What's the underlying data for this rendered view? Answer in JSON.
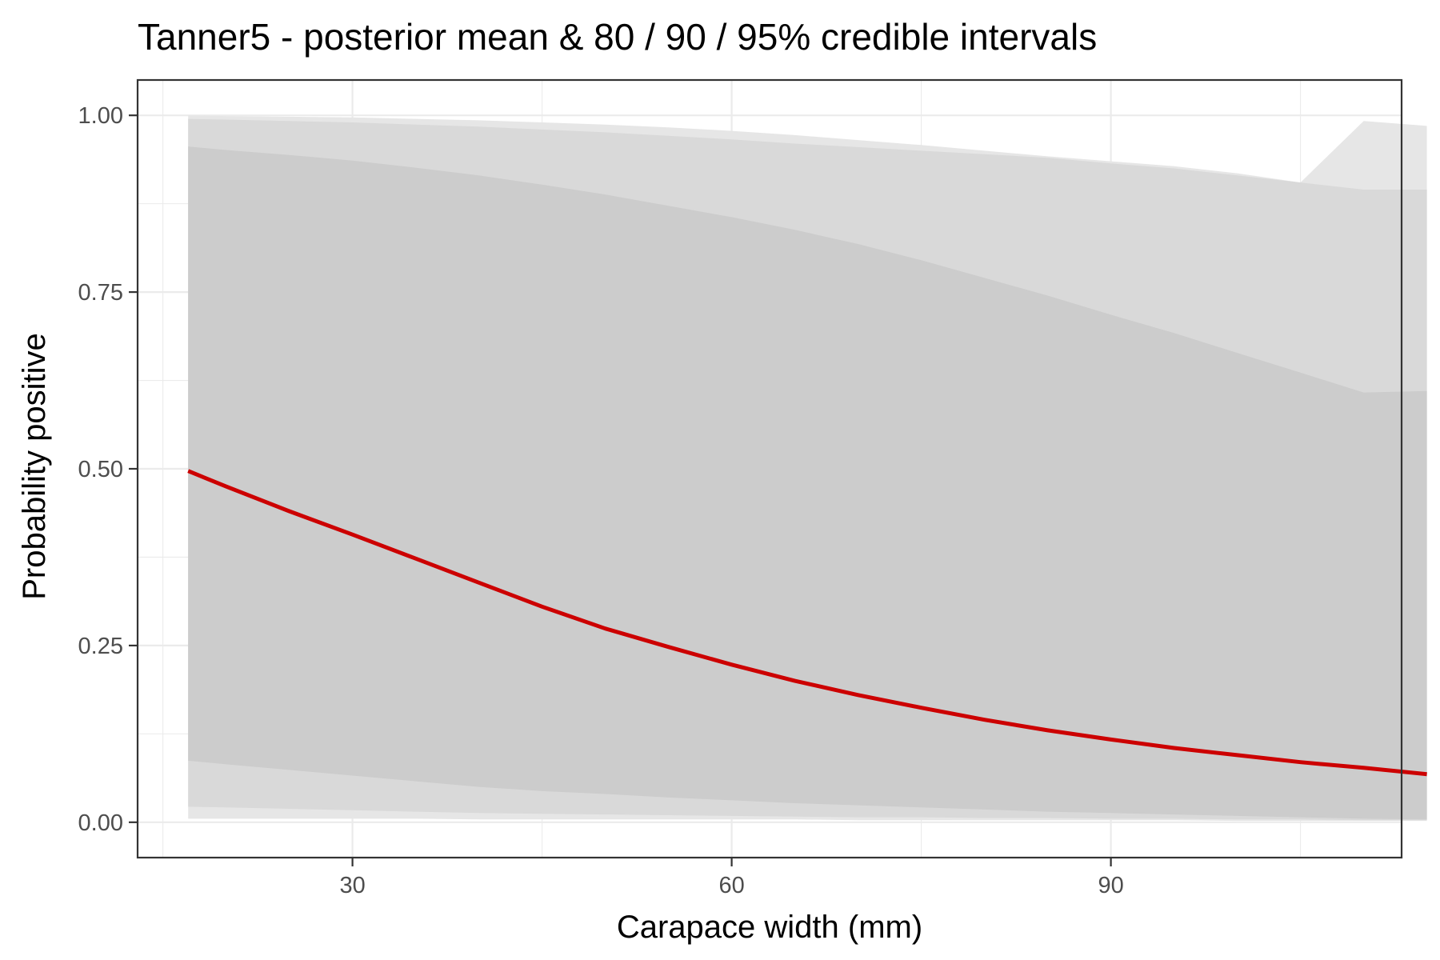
{
  "chart_data": {
    "type": "line",
    "title": "Tanner5 - posterior mean & 80 / 90 / 95% credible intervals",
    "xlabel": "Carapace width (mm)",
    "ylabel": "Probability positive",
    "xlim": [
      13,
      113
    ],
    "ylim": [
      -0.05,
      1.05
    ],
    "x_ticks": [
      30,
      60,
      90
    ],
    "x_minor_ticks": [
      15,
      45,
      75,
      105
    ],
    "y_ticks": [
      0.0,
      0.25,
      0.5,
      0.75,
      1.0
    ],
    "y_tick_labels": [
      "0.00",
      "0.25",
      "0.50",
      "0.75",
      "1.00"
    ],
    "y_minor_ticks": [
      0.125,
      0.375,
      0.625,
      0.875
    ],
    "grid": true,
    "legend": "none",
    "colors": {
      "mean_line": "#cc0000",
      "band_95": "#e6e6e6",
      "band_90": "#d9d9d9",
      "band_80": "#cccccc"
    },
    "x": [
      17,
      20,
      25,
      30,
      35,
      40,
      45,
      50,
      55,
      60,
      65,
      70,
      75,
      80,
      85,
      90,
      95,
      100,
      105,
      110,
      115
    ],
    "series": [
      {
        "role": "mean",
        "values": [
          0.497,
          0.475,
          0.44,
          0.407,
          0.373,
          0.339,
          0.305,
          0.274,
          0.248,
          0.223,
          0.2,
          0.18,
          0.162,
          0.145,
          0.13,
          0.117,
          0.105,
          0.095,
          0.085,
          0.077,
          0.068
        ]
      },
      {
        "role": "band_95",
        "lower": [
          0.005,
          0.005,
          0.005,
          0.005,
          0.005,
          0.004,
          0.004,
          0.004,
          0.004,
          0.004,
          0.004,
          0.003,
          0.003,
          0.003,
          0.003,
          0.003,
          0.003,
          0.002,
          0.002,
          0.002,
          0.002
        ],
        "upper": [
          1.0,
          0.999,
          0.998,
          0.997,
          0.995,
          0.993,
          0.99,
          0.987,
          0.983,
          0.978,
          0.972,
          0.965,
          0.958,
          0.95,
          0.942,
          0.935,
          0.928,
          0.918,
          0.905,
          0.992,
          0.985
        ]
      },
      {
        "role": "band_90",
        "lower": [
          0.022,
          0.021,
          0.019,
          0.017,
          0.015,
          0.013,
          0.012,
          0.011,
          0.01,
          0.009,
          0.008,
          0.007,
          0.007,
          0.006,
          0.006,
          0.005,
          0.005,
          0.004,
          0.004,
          0.003,
          0.003
        ],
        "upper": [
          0.995,
          0.994,
          0.992,
          0.99,
          0.987,
          0.984,
          0.98,
          0.976,
          0.971,
          0.966,
          0.96,
          0.955,
          0.95,
          0.945,
          0.94,
          0.932,
          0.925,
          0.915,
          0.905,
          0.895,
          0.895
        ]
      },
      {
        "role": "band_80",
        "lower": [
          0.087,
          0.082,
          0.074,
          0.066,
          0.058,
          0.05,
          0.044,
          0.04,
          0.035,
          0.031,
          0.027,
          0.024,
          0.021,
          0.018,
          0.015,
          0.013,
          0.011,
          0.009,
          0.007,
          0.005,
          0.004
        ],
        "upper": [
          0.956,
          0.951,
          0.944,
          0.936,
          0.926,
          0.915,
          0.902,
          0.888,
          0.872,
          0.856,
          0.838,
          0.818,
          0.795,
          0.77,
          0.745,
          0.718,
          0.692,
          0.664,
          0.636,
          0.608,
          0.61
        ]
      }
    ]
  }
}
